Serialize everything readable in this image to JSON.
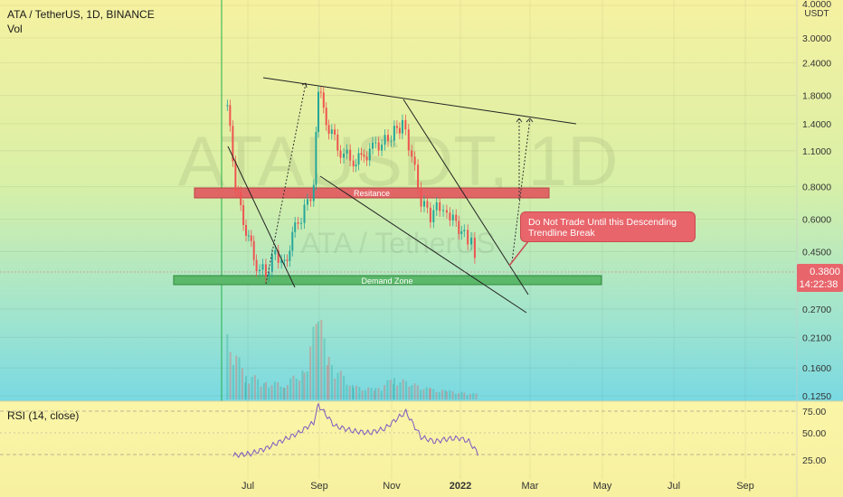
{
  "header": {
    "symbol_line": "ATA / TetherUS, 1D, BINANCE",
    "volume_label": "Vol",
    "rsi_label": "RSI (14, close)"
  },
  "watermark": {
    "primary": "ATAUSDT, 1D",
    "secondary": "ATA / TetherUS"
  },
  "price_scale": {
    "currency": "USDT",
    "last_price": "0.3800",
    "countdown": "14:22:38",
    "price_badge_color": "#e8656b",
    "countdown_badge_color": "#e8656b"
  },
  "annotations": {
    "resistance": "Resitance",
    "demand": "Demand Zone",
    "callout": "Do Not Trade Until this Descending Trendline Break",
    "resistance_color": "#e06666",
    "demand_color": "#5cb86a"
  },
  "chart_data": [
    {
      "type": "line",
      "title": "ATA / TetherUS, 1D, BINANCE",
      "y_scale": "log",
      "ylim": [
        0.12,
        4.0
      ],
      "y_ticks": [
        "4.0000",
        "3.0000",
        "2.4000",
        "1.8000",
        "1.4000",
        "1.1000",
        "0.8000",
        "0.6000",
        "0.4500",
        "0.2700",
        "0.2100",
        "0.1600",
        "0.1250"
      ],
      "x_ticks": [
        "Jul",
        "Sep",
        "Nov",
        "2022",
        "Mar",
        "May",
        "Jul",
        "Sep"
      ],
      "x": [
        "2021-06-15",
        "2021-06-22",
        "2021-07-01",
        "2021-07-10",
        "2021-07-18",
        "2021-07-26",
        "2021-08-03",
        "2021-08-12",
        "2021-08-20",
        "2021-08-28",
        "2021-09-01",
        "2021-09-10",
        "2021-09-20",
        "2021-10-01",
        "2021-10-10",
        "2021-10-20",
        "2021-10-28",
        "2021-11-05",
        "2021-11-12",
        "2021-11-20",
        "2021-11-28",
        "2021-12-06",
        "2021-12-14",
        "2021-12-20",
        "2021-12-28",
        "2022-01-04",
        "2022-01-10",
        "2022-01-16"
      ],
      "series": [
        {
          "values": [
            1.65,
            0.8,
            0.55,
            0.4,
            0.37,
            0.45,
            0.4,
            0.55,
            0.65,
            0.8,
            1.9,
            1.35,
            1.1,
            1.0,
            1.05,
            1.15,
            1.2,
            1.3,
            1.4,
            1.05,
            0.7,
            0.62,
            0.68,
            0.65,
            0.58,
            0.52,
            0.48,
            0.38
          ]
        }
      ]
    },
    {
      "type": "bar",
      "title": "Vol",
      "x": [
        "2021-06-15",
        "2021-07-01",
        "2021-07-18",
        "2021-08-03",
        "2021-08-20",
        "2021-09-01",
        "2021-09-10",
        "2021-10-01",
        "2021-10-20",
        "2021-11-05",
        "2021-11-20",
        "2021-12-06",
        "2021-12-20",
        "2022-01-04",
        "2022-01-16"
      ],
      "values": [
        70,
        30,
        20,
        18,
        35,
        100,
        45,
        15,
        12,
        25,
        18,
        12,
        10,
        8,
        6
      ]
    },
    {
      "type": "line",
      "title": "RSI (14, close)",
      "ylim": [
        15,
        85
      ],
      "y_ticks": [
        "75.00",
        "50.00",
        "25.00"
      ],
      "x": [
        "2021-06-20",
        "2021-07-05",
        "2021-07-18",
        "2021-08-01",
        "2021-08-15",
        "2021-08-28",
        "2021-09-01",
        "2021-09-15",
        "2021-10-01",
        "2021-10-15",
        "2021-10-28",
        "2021-11-08",
        "2021-11-15",
        "2021-11-28",
        "2021-12-10",
        "2021-12-20",
        "2021-12-31",
        "2022-01-08",
        "2022-01-16"
      ],
      "series": [
        {
          "values": [
            24,
            26,
            32,
            41,
            50,
            62,
            82,
            58,
            52,
            50,
            55,
            67,
            74,
            45,
            40,
            43,
            44,
            40,
            26
          ]
        }
      ]
    }
  ]
}
